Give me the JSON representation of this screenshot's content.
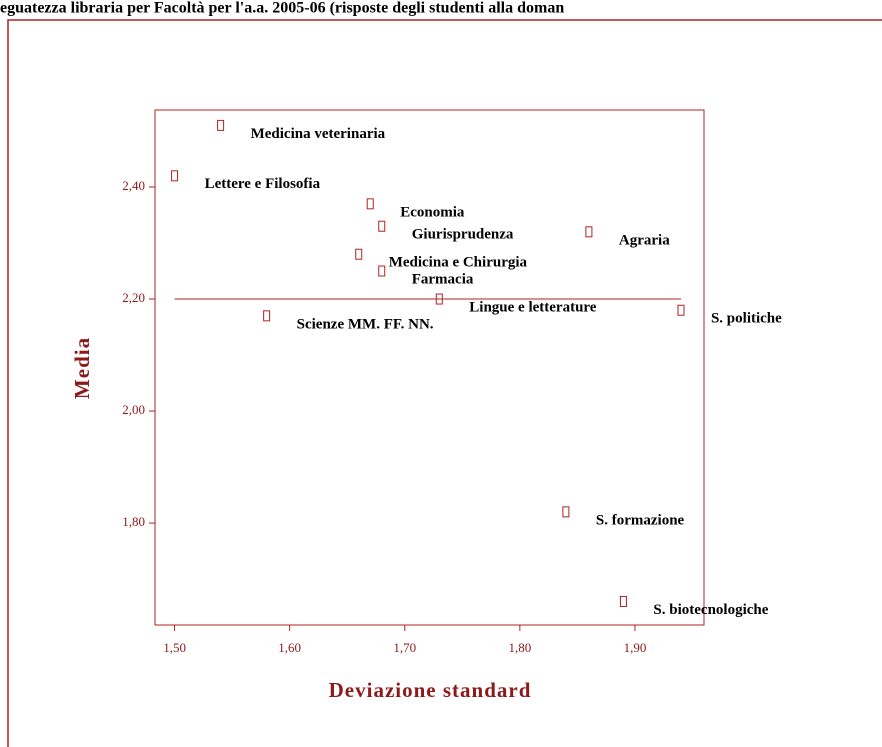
{
  "chart_data": {
    "type": "scatter",
    "title": "eguatezza libraria per Facoltà per l'a.a. 2005-06 (risposte degli studenti alla doman",
    "xlabel": "Deviazione standard",
    "ylabel": "Media",
    "color": "#b22222",
    "point_labels": [
      "Medicina veterinaria",
      "Lettere e Filosofia",
      "Economia",
      "Giurisprudenza",
      "Agraria",
      "Medicina e Chirurgia",
      "Farmacia",
      "Lingue e letterature",
      "S. politiche",
      "Scienze MM. FF. NN.",
      "S. formazione",
      "S. biotecnologiche"
    ],
    "x": [
      1.54,
      1.5,
      1.67,
      1.68,
      1.86,
      1.66,
      1.68,
      1.73,
      1.94,
      1.58,
      1.84,
      1.89
    ],
    "values": [
      2.51,
      2.42,
      2.37,
      2.33,
      2.32,
      2.28,
      2.25,
      2.2,
      2.18,
      2.17,
      1.82,
      1.66
    ],
    "reference_line": {
      "y": 2.2,
      "x": [
        1.5,
        1.94
      ]
    },
    "xlim": [
      1.483,
      1.96
    ],
    "ylim": [
      1.618,
      2.5375
    ],
    "xticks": [
      {
        "value": 1.5,
        "label": "1,50"
      },
      {
        "value": 1.6,
        "label": "1,60"
      },
      {
        "value": 1.7,
        "label": "1,70"
      },
      {
        "value": 1.8,
        "label": "1,80"
      },
      {
        "value": 1.9,
        "label": "1,90"
      }
    ],
    "yticks": [
      {
        "value": 1.8,
        "label": "1,80"
      },
      {
        "value": 2.0,
        "label": "2,00"
      },
      {
        "value": 2.2,
        "label": "2,20"
      },
      {
        "value": 2.4,
        "label": "2,40"
      }
    ]
  }
}
